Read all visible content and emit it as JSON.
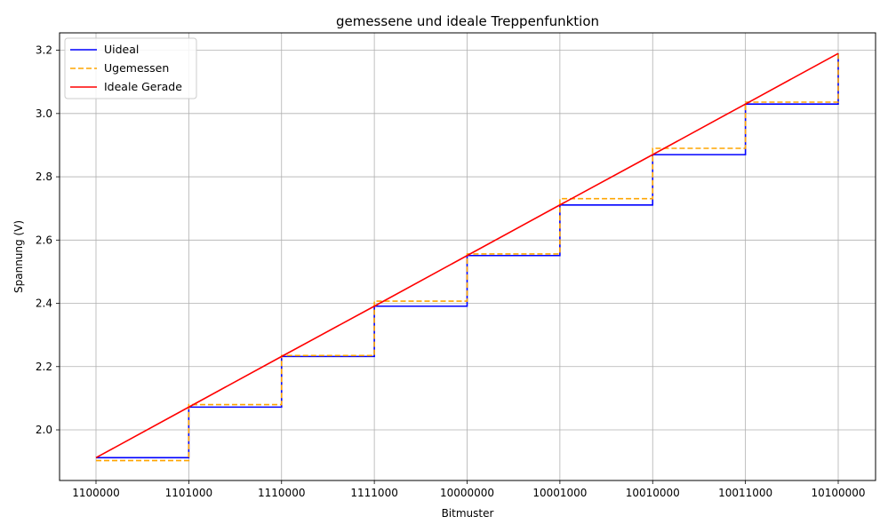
{
  "chart_data": {
    "type": "line",
    "title": "gemessene und ideale Treppenfunktion",
    "xlabel": "Bitmuster",
    "ylabel": "Spannung (V)",
    "categories": [
      "1100000",
      "1101000",
      "1110000",
      "1111000",
      "10000000",
      "10001000",
      "10010000",
      "10011000",
      "10100000"
    ],
    "ylim": [
      1.84,
      3.255
    ],
    "yticks": [
      "2.0",
      "2.2",
      "2.4",
      "2.6",
      "2.8",
      "3.0",
      "3.2"
    ],
    "grid": true,
    "legend_position": "top-left",
    "series": [
      {
        "name": "Uideal",
        "style": "step-post",
        "color": "#0000ff",
        "dash": "solid",
        "values": [
          1.912,
          2.072,
          2.232,
          2.391,
          2.551,
          2.711,
          2.87,
          3.03,
          3.19
        ]
      },
      {
        "name": "Ugemessen",
        "style": "step-post",
        "color": "#ffa500",
        "dash": "dashed",
        "values": [
          1.903,
          2.08,
          2.235,
          2.407,
          2.556,
          2.731,
          2.89,
          3.036,
          3.19
        ]
      },
      {
        "name": "Ideale Gerade",
        "style": "line",
        "color": "#ff0000",
        "dash": "solid",
        "values": [
          1.912,
          2.072,
          2.232,
          2.391,
          2.551,
          2.711,
          2.87,
          3.03,
          3.19
        ]
      }
    ]
  }
}
